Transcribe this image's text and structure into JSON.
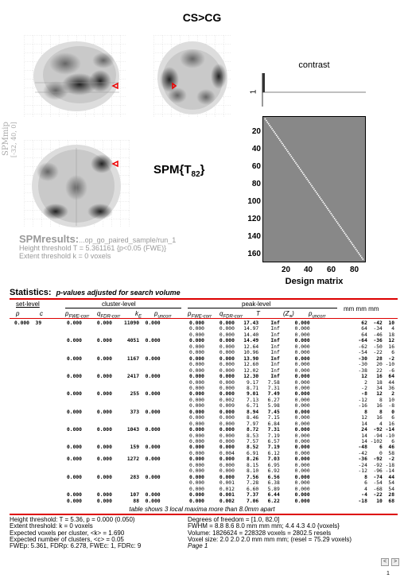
{
  "title": "CS>CG",
  "mip": {
    "label": "SPMmip",
    "coords": "[-32, 40, 0]"
  },
  "spm_stat": {
    "main": "SPM{T",
    "sub": "82",
    "close": "}"
  },
  "contrast": {
    "label": "contrast",
    "tick": "1"
  },
  "design_matrix": {
    "label": "Design matrix",
    "y_ticks": [
      "20",
      "40",
      "60",
      "80",
      "100",
      "120",
      "140",
      "160"
    ],
    "x_ticks": [
      "20",
      "40",
      "60",
      "80"
    ]
  },
  "results": {
    "title": "SPMresults:",
    "path": "...op_go_paired_sample/run_1",
    "height": "Height threshold T = 5.361161  {p<0.05 (FWE)}",
    "extent": "Extent threshold k = 0 voxels"
  },
  "stats": {
    "title": "Statistics:",
    "subtitle": "p-values adjusted for search volume",
    "set_level": "set-level",
    "cluster_level": "cluster-level",
    "peak_level": "peak-level",
    "mm": "mm mm mm",
    "cols": {
      "p": "p",
      "c": "c",
      "pfwe": "p",
      "pfwe_sub": "FWE-corr",
      "qfdr": "q",
      "qfdr_sub": "FDR-corr",
      "ke": "k",
      "ke_sub": "E",
      "punc": "p",
      "punc_sub": "uncorr",
      "T": "T",
      "Z": "(Z",
      "Z_sub": "≡",
      "Z_close": ")"
    }
  },
  "rows": [
    {
      "set": "0.000  39",
      "cl": "0.000     0.000    11090  0.000",
      "pk": "0.000     0.000   17.43    Inf     0.000",
      "mm": "62  -42  10"
    },
    {
      "set": "",
      "cl": "",
      "pk": "0.000     0.000   14.97    Inf     0.000",
      "mm": "64  -34   4"
    },
    {
      "set": "",
      "cl": "",
      "pk": "0.000     0.000   14.40    Inf     0.000",
      "mm": "64  -46  18"
    },
    {
      "set": "",
      "cl": "0.000     0.000     4051  0.000",
      "pk": "0.000     0.000   14.49    Inf     0.000",
      "mm": "-64  -36  12"
    },
    {
      "set": "",
      "cl": "",
      "pk": "0.000     0.000   12.64    Inf     0.000",
      "mm": "-62  -50  16"
    },
    {
      "set": "",
      "cl": "",
      "pk": "0.000     0.000   10.96    Inf     0.000",
      "mm": "-54  -22   6"
    },
    {
      "set": "",
      "cl": "0.000     0.000     1167  0.000",
      "pk": "0.000     0.000   13.90    Inf     0.000",
      "mm": "-30   28  -2"
    },
    {
      "set": "",
      "cl": "",
      "pk": "0.000     0.000   12.60    Inf     0.000",
      "mm": "-30   20 -10"
    },
    {
      "set": "",
      "cl": "",
      "pk": "0.000     0.000   12.02    Inf     0.000",
      "mm": "-38   22  -6"
    },
    {
      "set": "",
      "cl": "0.000     0.000     2417  0.000",
      "pk": "0.000     0.000   12.30    Inf     0.000",
      "mm": "12   16  64"
    },
    {
      "set": "",
      "cl": "",
      "pk": "0.000     0.000    9.17   7.58     0.000",
      "mm": "2   18  44"
    },
    {
      "set": "",
      "cl": "",
      "pk": "0.000     0.000    8.71   7.31     0.000",
      "mm": "-2   34  36"
    },
    {
      "set": "",
      "cl": "0.000     0.000      255  0.000",
      "pk": "0.000     0.000    9.01   7.49     0.000",
      "mm": "-8   12   2"
    },
    {
      "set": "",
      "cl": "",
      "pk": "0.000     0.002    7.13   6.27     0.000",
      "mm": "-12    8  10"
    },
    {
      "set": "",
      "cl": "",
      "pk": "0.000     0.009    6.71   5.98     0.000",
      "mm": "-16   16  -8"
    },
    {
      "set": "",
      "cl": "0.000     0.000      373  0.000",
      "pk": "0.000     0.000    8.94   7.45     0.000",
      "mm": "8    8   0"
    },
    {
      "set": "",
      "cl": "",
      "pk": "0.000     0.000    8.46   7.15     0.000",
      "mm": "12   16   6"
    },
    {
      "set": "",
      "cl": "",
      "pk": "0.000     0.000    7.97   6.84     0.000",
      "mm": "14    4  16"
    },
    {
      "set": "",
      "cl": "0.000     0.000     1043  0.000",
      "pk": "0.000     0.000    8.72   7.31     0.000",
      "mm": "24  -92 -14"
    },
    {
      "set": "",
      "cl": "",
      "pk": "0.000     0.000    8.53   7.19     0.000",
      "mm": "14  -94 -10"
    },
    {
      "set": "",
      "cl": "",
      "pk": "0.000     0.000    7.57   6.57     0.000",
      "mm": "14 -102   6"
    },
    {
      "set": "",
      "cl": "0.000     0.000      159  0.000",
      "pk": "0.000     0.000    8.52   7.19     0.000",
      "mm": "-48    6  46"
    },
    {
      "set": "",
      "cl": "",
      "pk": "0.000     0.004    6.91   6.12     0.000",
      "mm": "-42    0  58"
    },
    {
      "set": "",
      "cl": "0.000     0.000     1272  0.000",
      "pk": "0.000     0.000    8.26   7.03     0.000",
      "mm": "-36  -92  -2"
    },
    {
      "set": "",
      "cl": "",
      "pk": "0.000     0.000    8.15   6.95     0.000",
      "mm": "-24  -92 -18"
    },
    {
      "set": "",
      "cl": "",
      "pk": "0.000     0.000    8.10   6.92     0.000",
      "mm": "-12  -96 -14"
    },
    {
      "set": "",
      "cl": "0.000     0.000      283  0.000",
      "pk": "0.000     0.000    7.56   6.56     0.000",
      "mm": "8  -74  44"
    },
    {
      "set": "",
      "cl": "",
      "pk": "0.000     0.001    7.28   6.38     0.000",
      "mm": "6  -54  54"
    },
    {
      "set": "",
      "cl": "",
      "pk": "0.000     0.012    6.60   5.89     0.000",
      "mm": "4  -68  54"
    },
    {
      "set": "",
      "cl": "0.000     0.000      107  0.000",
      "pk": "0.000     0.001    7.37   6.44     0.000",
      "mm": "-4  -22  28"
    },
    {
      "set": "",
      "cl": "0.000     0.000       88  0.000",
      "pk": "0.000     0.002    7.06   6.22     0.000",
      "mm": "-18   10  68"
    }
  ],
  "table_note": "table shows 3 local maxima more than 8.0mm apart",
  "footer": {
    "left": [
      "Height threshold: T = 5.36, p = 0.000 (0.050)",
      "Extent threshold: k = 0 voxels",
      "Expected voxels per cluster, <k> = 1.690",
      "Expected number of clusters, <c> = 0.05",
      "FWEp: 5.361, FDRp: 6.278, FWEc: 1, FDRc: 9"
    ],
    "right": [
      "Degrees of freedom = [1.0, 82.0]",
      "FWHM = 8.8 8.6 8.0 mm mm mm; 4.4 4.3 4.0 {voxels}",
      "Volume: 1826624 = 228328 voxels = 2802.5 resels",
      "Voxel size: 2.0 2.0 2.0 mm mm mm; (resel = 75.29 voxels)",
      "Page 1"
    ]
  },
  "nav": {
    "prev": "<",
    "next": ">",
    "page": "1"
  }
}
